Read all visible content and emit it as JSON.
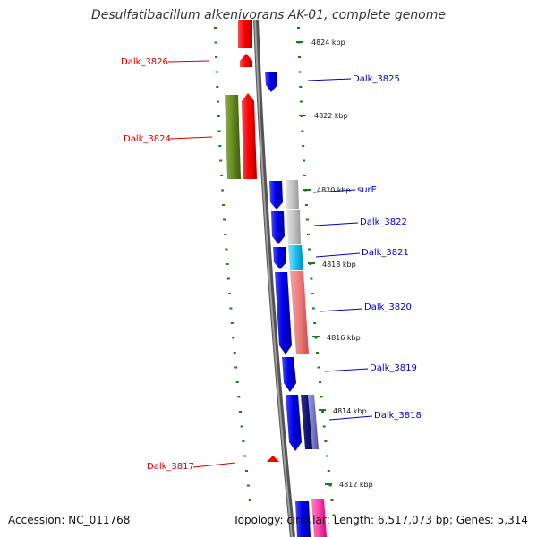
{
  "header": {
    "title": "Desulfatibacillum alkenivorans AK-01, complete genome"
  },
  "footer": {
    "accession": "Accession: NC_011768",
    "summary": "Topology: circular; Length: 6,517,073 bp; Genes: 5,314"
  },
  "colors": {
    "backbone": "#8a8a8a",
    "reverse_strand_label": "#cc0000",
    "forward_strand_label": "#0000bb",
    "tick": "#1a7a1a"
  },
  "ticks": [
    "4824 kbp",
    "4822 kbp",
    "4820 kbp",
    "4818 kbp",
    "4816 kbp",
    "4814 kbp",
    "4812 kbp"
  ],
  "gene_labels": {
    "Dalk_3826": "Dalk_3826",
    "Dalk_3824": "Dalk_3824",
    "Dalk_3817": "Dalk_3817",
    "Dalk_3825": "Dalk_3825",
    "surE": "surE",
    "Dalk_3822": "Dalk_3822",
    "Dalk_3821": "Dalk_3821",
    "Dalk_3820": "Dalk_3820",
    "Dalk_3819": "Dalk_3819",
    "Dalk_3818": "Dalk_3818"
  }
}
